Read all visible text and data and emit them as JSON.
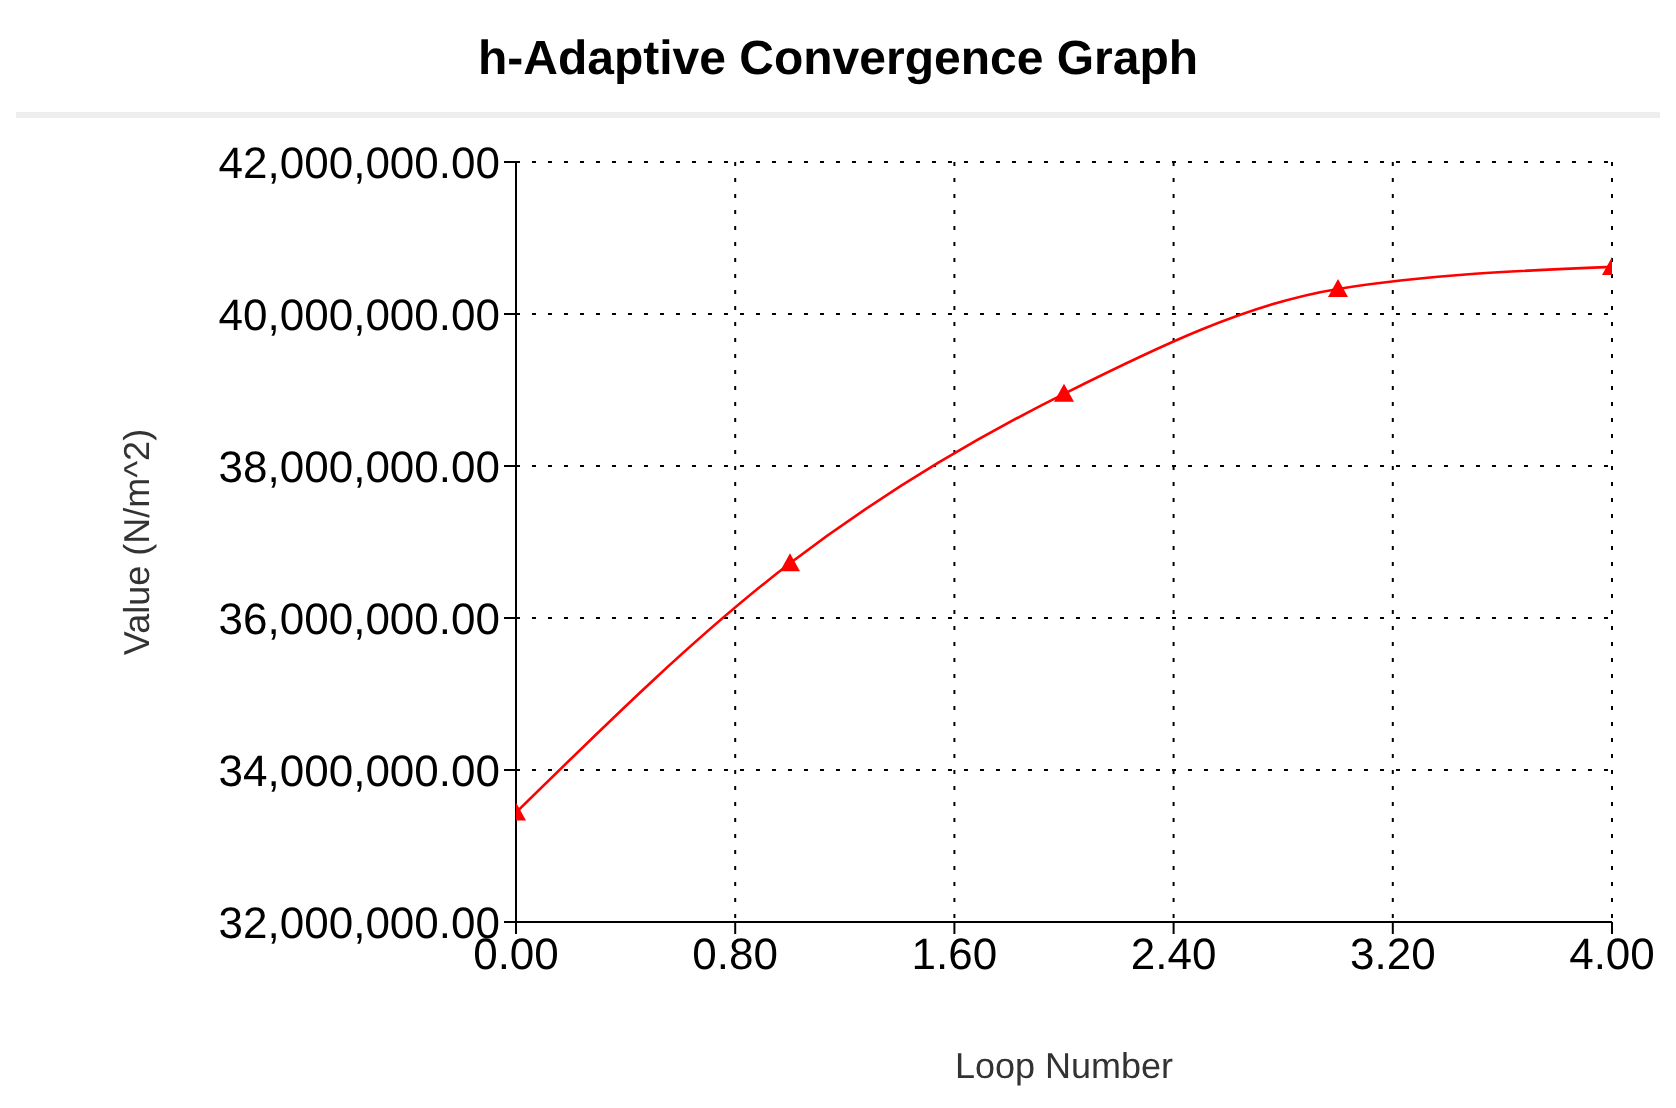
{
  "chart_data": {
    "type": "line",
    "title": "h-Adaptive Convergence Graph",
    "xlabel": "Loop Number",
    "ylabel": "Value (N/m^2)",
    "x": [
      0,
      1,
      2,
      3,
      4
    ],
    "series": [
      {
        "color": "#ff0000",
        "values": [
          33440000,
          36720000,
          38950000,
          40330000,
          40620000
        ]
      }
    ],
    "xlim": [
      0,
      4
    ],
    "xticks": [
      {
        "value": 0,
        "label": "0.00"
      },
      {
        "value": 0.8,
        "label": "0.80"
      },
      {
        "value": 1.6,
        "label": "1.60"
      },
      {
        "value": 2.4,
        "label": "2.40"
      },
      {
        "value": 3.2,
        "label": "3.20"
      },
      {
        "value": 4,
        "label": "4.00"
      }
    ],
    "ylim": [
      32000000,
      42000000
    ],
    "yticks": [
      {
        "value": 32000000,
        "label": "32,000,000.00"
      },
      {
        "value": 34000000,
        "label": "34,000,000.00"
      },
      {
        "value": 36000000,
        "label": "36,000,000.00"
      },
      {
        "value": 38000000,
        "label": "38,000,000.00"
      },
      {
        "value": 40000000,
        "label": "40,000,000.00"
      },
      {
        "value": 42000000,
        "label": "42,000,000.00"
      }
    ],
    "grid": true,
    "marker": "triangle",
    "line_style": "solid"
  }
}
